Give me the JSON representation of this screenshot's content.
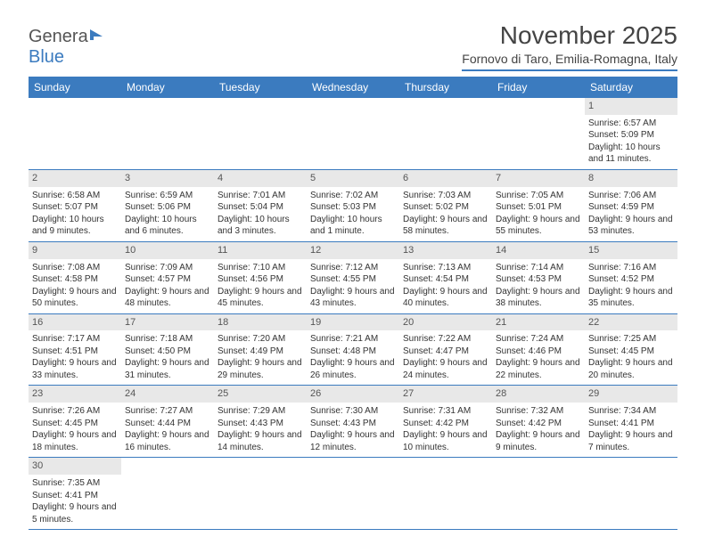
{
  "logo": {
    "text_general": "Genera",
    "text_blue": "Blue"
  },
  "header": {
    "month_title": "November 2025",
    "location": "Fornovo di Taro, Emilia-Romagna, Italy"
  },
  "colors": {
    "header_bg": "#3b7bbf",
    "header_text": "#ffffff",
    "daynum_bg": "#e8e8e8",
    "border": "#3b7bbf"
  },
  "day_names": [
    "Sunday",
    "Monday",
    "Tuesday",
    "Wednesday",
    "Thursday",
    "Friday",
    "Saturday"
  ],
  "weeks": [
    [
      null,
      null,
      null,
      null,
      null,
      null,
      {
        "n": "1",
        "sunrise": "Sunrise: 6:57 AM",
        "sunset": "Sunset: 5:09 PM",
        "daylight": "Daylight: 10 hours and 11 minutes."
      }
    ],
    [
      {
        "n": "2",
        "sunrise": "Sunrise: 6:58 AM",
        "sunset": "Sunset: 5:07 PM",
        "daylight": "Daylight: 10 hours and 9 minutes."
      },
      {
        "n": "3",
        "sunrise": "Sunrise: 6:59 AM",
        "sunset": "Sunset: 5:06 PM",
        "daylight": "Daylight: 10 hours and 6 minutes."
      },
      {
        "n": "4",
        "sunrise": "Sunrise: 7:01 AM",
        "sunset": "Sunset: 5:04 PM",
        "daylight": "Daylight: 10 hours and 3 minutes."
      },
      {
        "n": "5",
        "sunrise": "Sunrise: 7:02 AM",
        "sunset": "Sunset: 5:03 PM",
        "daylight": "Daylight: 10 hours and 1 minute."
      },
      {
        "n": "6",
        "sunrise": "Sunrise: 7:03 AM",
        "sunset": "Sunset: 5:02 PM",
        "daylight": "Daylight: 9 hours and 58 minutes."
      },
      {
        "n": "7",
        "sunrise": "Sunrise: 7:05 AM",
        "sunset": "Sunset: 5:01 PM",
        "daylight": "Daylight: 9 hours and 55 minutes."
      },
      {
        "n": "8",
        "sunrise": "Sunrise: 7:06 AM",
        "sunset": "Sunset: 4:59 PM",
        "daylight": "Daylight: 9 hours and 53 minutes."
      }
    ],
    [
      {
        "n": "9",
        "sunrise": "Sunrise: 7:08 AM",
        "sunset": "Sunset: 4:58 PM",
        "daylight": "Daylight: 9 hours and 50 minutes."
      },
      {
        "n": "10",
        "sunrise": "Sunrise: 7:09 AM",
        "sunset": "Sunset: 4:57 PM",
        "daylight": "Daylight: 9 hours and 48 minutes."
      },
      {
        "n": "11",
        "sunrise": "Sunrise: 7:10 AM",
        "sunset": "Sunset: 4:56 PM",
        "daylight": "Daylight: 9 hours and 45 minutes."
      },
      {
        "n": "12",
        "sunrise": "Sunrise: 7:12 AM",
        "sunset": "Sunset: 4:55 PM",
        "daylight": "Daylight: 9 hours and 43 minutes."
      },
      {
        "n": "13",
        "sunrise": "Sunrise: 7:13 AM",
        "sunset": "Sunset: 4:54 PM",
        "daylight": "Daylight: 9 hours and 40 minutes."
      },
      {
        "n": "14",
        "sunrise": "Sunrise: 7:14 AM",
        "sunset": "Sunset: 4:53 PM",
        "daylight": "Daylight: 9 hours and 38 minutes."
      },
      {
        "n": "15",
        "sunrise": "Sunrise: 7:16 AM",
        "sunset": "Sunset: 4:52 PM",
        "daylight": "Daylight: 9 hours and 35 minutes."
      }
    ],
    [
      {
        "n": "16",
        "sunrise": "Sunrise: 7:17 AM",
        "sunset": "Sunset: 4:51 PM",
        "daylight": "Daylight: 9 hours and 33 minutes."
      },
      {
        "n": "17",
        "sunrise": "Sunrise: 7:18 AM",
        "sunset": "Sunset: 4:50 PM",
        "daylight": "Daylight: 9 hours and 31 minutes."
      },
      {
        "n": "18",
        "sunrise": "Sunrise: 7:20 AM",
        "sunset": "Sunset: 4:49 PM",
        "daylight": "Daylight: 9 hours and 29 minutes."
      },
      {
        "n": "19",
        "sunrise": "Sunrise: 7:21 AM",
        "sunset": "Sunset: 4:48 PM",
        "daylight": "Daylight: 9 hours and 26 minutes."
      },
      {
        "n": "20",
        "sunrise": "Sunrise: 7:22 AM",
        "sunset": "Sunset: 4:47 PM",
        "daylight": "Daylight: 9 hours and 24 minutes."
      },
      {
        "n": "21",
        "sunrise": "Sunrise: 7:24 AM",
        "sunset": "Sunset: 4:46 PM",
        "daylight": "Daylight: 9 hours and 22 minutes."
      },
      {
        "n": "22",
        "sunrise": "Sunrise: 7:25 AM",
        "sunset": "Sunset: 4:45 PM",
        "daylight": "Daylight: 9 hours and 20 minutes."
      }
    ],
    [
      {
        "n": "23",
        "sunrise": "Sunrise: 7:26 AM",
        "sunset": "Sunset: 4:45 PM",
        "daylight": "Daylight: 9 hours and 18 minutes."
      },
      {
        "n": "24",
        "sunrise": "Sunrise: 7:27 AM",
        "sunset": "Sunset: 4:44 PM",
        "daylight": "Daylight: 9 hours and 16 minutes."
      },
      {
        "n": "25",
        "sunrise": "Sunrise: 7:29 AM",
        "sunset": "Sunset: 4:43 PM",
        "daylight": "Daylight: 9 hours and 14 minutes."
      },
      {
        "n": "26",
        "sunrise": "Sunrise: 7:30 AM",
        "sunset": "Sunset: 4:43 PM",
        "daylight": "Daylight: 9 hours and 12 minutes."
      },
      {
        "n": "27",
        "sunrise": "Sunrise: 7:31 AM",
        "sunset": "Sunset: 4:42 PM",
        "daylight": "Daylight: 9 hours and 10 minutes."
      },
      {
        "n": "28",
        "sunrise": "Sunrise: 7:32 AM",
        "sunset": "Sunset: 4:42 PM",
        "daylight": "Daylight: 9 hours and 9 minutes."
      },
      {
        "n": "29",
        "sunrise": "Sunrise: 7:34 AM",
        "sunset": "Sunset: 4:41 PM",
        "daylight": "Daylight: 9 hours and 7 minutes."
      }
    ],
    [
      {
        "n": "30",
        "sunrise": "Sunrise: 7:35 AM",
        "sunset": "Sunset: 4:41 PM",
        "daylight": "Daylight: 9 hours and 5 minutes."
      },
      null,
      null,
      null,
      null,
      null,
      null
    ]
  ]
}
